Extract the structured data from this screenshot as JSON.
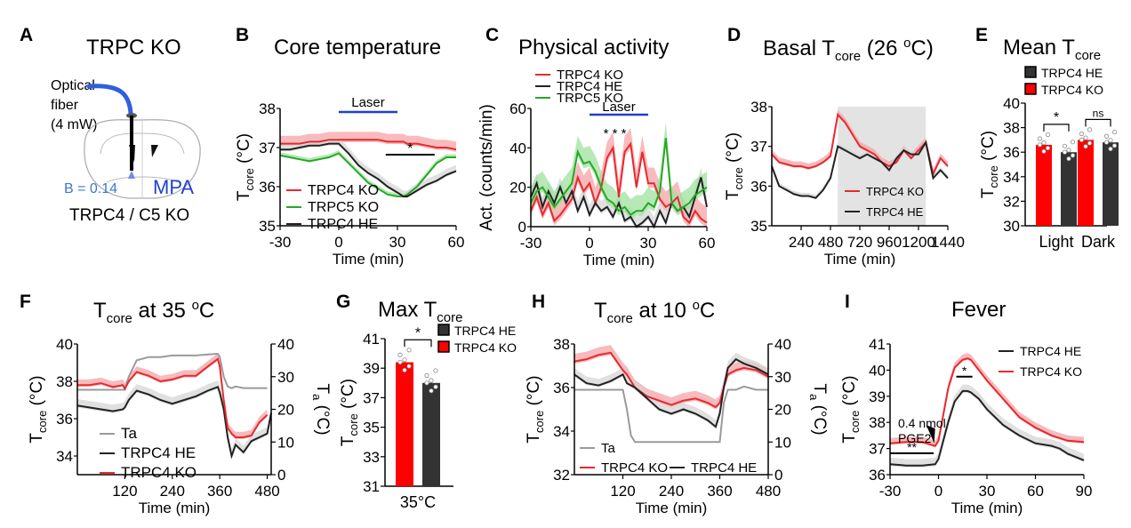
{
  "panels": {
    "A": {
      "letter": "A",
      "title": "TRPC KO",
      "fiber_label_1": "Optical",
      "fiber_label_2": "fiber",
      "fiber_label_3": "(4 mW)",
      "bregma": "B = 0.14",
      "region": "MPA",
      "genotypes": "TRPC4 / C5 KO"
    },
    "B": {
      "letter": "B",
      "title": "Core temperature"
    },
    "C": {
      "letter": "C",
      "title": "Physical activity"
    },
    "D": {
      "letter": "D",
      "title_main": "Basal T",
      "title_sub": "core",
      "title_tail": " (26 ",
      "title_sup": "o",
      "title_end": "C)"
    },
    "E": {
      "letter": "E",
      "title_main": "Mean T",
      "title_sub": "core"
    },
    "F": {
      "letter": "F",
      "title_main": "T",
      "title_sub": "core",
      "title_tail": "  at 35 ",
      "title_sup": "o",
      "title_end": "C"
    },
    "G": {
      "letter": "G",
      "title_main": "Max T",
      "title_sub": "core"
    },
    "H": {
      "letter": "H",
      "title_main": "T",
      "title_sub": "core",
      "title_tail": "  at 10 ",
      "title_sup": "o",
      "title_end": "C"
    },
    "I": {
      "letter": "I",
      "title": "Fever"
    }
  },
  "colors": {
    "ko": "#e8292e",
    "ko_band": "#f5a3a5",
    "he": "#222222",
    "he_band": "#d6d6d6",
    "c5": "#27a827",
    "c5_band": "#9ee29e",
    "ta": "#9a9a9a",
    "laser": "#1f3fcf",
    "shade": "#e3e3e3",
    "bar_ko": "#ff0000",
    "bar_he": "#333333"
  },
  "chart_data": [
    {
      "id": "B",
      "type": "line",
      "title": "Core temperature",
      "xlabel": "Time (min)",
      "ylabel": "T_core (°C)",
      "xlim": [
        -30,
        60
      ],
      "ylim": [
        35,
        38
      ],
      "xticks": [
        "-30",
        "0",
        "30",
        "60"
      ],
      "yticks": [
        "35",
        "36",
        "37",
        "38"
      ],
      "annotations": {
        "laser_label": "Laser",
        "laser_range": [
          0,
          30
        ],
        "sig_label": "*",
        "sig_range": [
          24,
          49
        ]
      },
      "legend": [
        "TRPC4 KO",
        "TRPC5 KO",
        "TRPC4 HE"
      ],
      "legend_position": "bottom-left",
      "x": [
        -30,
        -25,
        -20,
        -15,
        -10,
        -5,
        0,
        5,
        10,
        15,
        20,
        25,
        30,
        33,
        35,
        40,
        45,
        50,
        55,
        60
      ],
      "series": [
        {
          "name": "TRPC4 KO",
          "values": [
            37.1,
            37.1,
            37.1,
            37.15,
            37.15,
            37.2,
            37.2,
            37.2,
            37.2,
            37.2,
            37.2,
            37.15,
            37.15,
            37.15,
            37.1,
            37.1,
            37.05,
            37.0,
            37.0,
            36.95
          ],
          "sem": 0.2
        },
        {
          "name": "TRPC5 KO",
          "values": [
            36.8,
            36.75,
            36.7,
            36.65,
            36.7,
            36.75,
            36.85,
            36.6,
            36.35,
            36.1,
            35.95,
            35.8,
            35.75,
            35.75,
            35.8,
            36.0,
            36.3,
            36.6,
            36.75,
            36.75
          ],
          "sem": 0.08
        },
        {
          "name": "TRPC4 HE",
          "values": [
            36.95,
            36.95,
            37.0,
            37.05,
            37.05,
            37.1,
            37.1,
            36.85,
            36.55,
            36.35,
            36.2,
            36.0,
            35.85,
            35.75,
            35.75,
            35.9,
            36.05,
            36.15,
            36.3,
            36.4
          ],
          "sem": 0.15
        }
      ]
    },
    {
      "id": "C",
      "type": "line",
      "title": "Physical activity",
      "xlabel": "Time (min)",
      "ylabel": "Act. (counts/min)",
      "xlim": [
        -30,
        60
      ],
      "ylim": [
        0,
        60
      ],
      "xticks": [
        "-30",
        "0",
        "30",
        "60"
      ],
      "yticks": [
        "0",
        "20",
        "40",
        "60"
      ],
      "annotations": {
        "laser_label": "Laser",
        "laser_range": [
          0,
          30
        ],
        "sig_label": "* * *"
      },
      "legend": [
        "TRPC4 KO",
        "TRPC4 HE",
        "TRPC5 KO"
      ],
      "legend_position": "top-left",
      "x": [
        -30,
        -27,
        -24,
        -21,
        -18,
        -15,
        -12,
        -9,
        -6,
        -3,
        0,
        3,
        6,
        9,
        12,
        15,
        18,
        21,
        24,
        27,
        30,
        33,
        36,
        39,
        42,
        45,
        48,
        51,
        54,
        57,
        60
      ],
      "series": [
        {
          "name": "TRPC4 KO",
          "values": [
            8,
            15,
            6,
            12,
            3,
            6,
            10,
            14,
            25,
            18,
            22,
            12,
            20,
            35,
            40,
            15,
            38,
            42,
            20,
            38,
            22,
            22,
            14,
            10,
            12,
            15,
            5,
            2,
            8,
            4,
            2
          ],
          "sem": 8
        },
        {
          "name": "TRPC4 HE",
          "values": [
            15,
            22,
            10,
            18,
            12,
            20,
            12,
            18,
            8,
            15,
            6,
            12,
            8,
            10,
            5,
            12,
            3,
            5,
            0,
            2,
            5,
            0,
            8,
            2,
            12,
            8,
            10,
            5,
            15,
            25,
            10
          ],
          "sem": 5
        },
        {
          "name": "TRPC5 KO",
          "values": [
            12,
            18,
            20,
            15,
            10,
            14,
            18,
            22,
            38,
            32,
            33,
            28,
            20,
            14,
            12,
            8,
            10,
            6,
            8,
            8,
            12,
            10,
            18,
            45,
            12,
            8,
            10,
            12,
            16,
            18,
            20
          ],
          "sem": 8
        }
      ]
    },
    {
      "id": "D",
      "type": "line",
      "title": "Basal T_core (26 °C)",
      "xlabel": "Time (min)",
      "ylabel": "T_core (°C)",
      "xlim": [
        0,
        1440
      ],
      "ylim": [
        35,
        38
      ],
      "xticks": [
        "240",
        "480",
        "720",
        "960",
        "1200",
        "1440"
      ],
      "yticks": [
        "35",
        "36",
        "37",
        "38"
      ],
      "annotations": {
        "dark_phase": [
          540,
          1260
        ]
      },
      "legend": [
        "TRPC4 KO",
        "TRPC4 HE"
      ],
      "legend_position": "bottom-center",
      "x": [
        0,
        60,
        120,
        180,
        240,
        300,
        360,
        420,
        480,
        540,
        600,
        660,
        720,
        780,
        840,
        900,
        960,
        1020,
        1080,
        1140,
        1200,
        1260,
        1320,
        1380,
        1440
      ],
      "series": [
        {
          "name": "TRPC4 KO",
          "values": [
            36.8,
            36.6,
            36.55,
            36.5,
            36.5,
            36.45,
            36.5,
            36.6,
            36.75,
            37.8,
            37.6,
            37.3,
            37.0,
            36.9,
            36.8,
            36.6,
            36.5,
            36.6,
            36.9,
            36.7,
            36.9,
            37.1,
            36.3,
            36.7,
            36.5
          ],
          "sem": 0.12
        },
        {
          "name": "TRPC4 HE",
          "values": [
            36.5,
            36.0,
            35.9,
            35.8,
            35.75,
            35.75,
            35.7,
            35.9,
            36.2,
            37.0,
            36.9,
            36.8,
            36.7,
            36.8,
            36.7,
            36.6,
            36.4,
            36.7,
            36.9,
            36.8,
            36.8,
            37.1,
            36.2,
            36.4,
            36.2
          ],
          "sem": 0.08
        }
      ]
    },
    {
      "id": "E",
      "type": "bar",
      "title": "Mean T_core",
      "ylabel": "T_core (°C)",
      "ylim": [
        30,
        40
      ],
      "yticks": [
        "30",
        "32",
        "34",
        "36",
        "38",
        "40"
      ],
      "categories": [
        "Light",
        "Dark"
      ],
      "legend": [
        "TRPC4 HE",
        "TRPC4 KO"
      ],
      "legend_position": "top",
      "series": [
        {
          "name": "TRPC4 KO",
          "values": [
            36.6,
            37.0
          ]
        },
        {
          "name": "TRPC4 HE",
          "values": [
            36.0,
            36.8
          ]
        }
      ],
      "significance": [
        "*",
        "ns"
      ]
    },
    {
      "id": "F",
      "type": "line",
      "title": "T_core at 35 °C",
      "xlabel": "Time (min)",
      "ylabel": "T_core (°C)",
      "y2label": "T_a (°C)",
      "xlim": [
        0,
        490
      ],
      "ylim": [
        33,
        40
      ],
      "y2lim": [
        0,
        40
      ],
      "xticks": [
        "120",
        "240",
        "360",
        "480"
      ],
      "yticks": [
        "34",
        "36",
        "38",
        "40"
      ],
      "y2ticks": [
        "0",
        "10",
        "20",
        "30",
        "40"
      ],
      "legend": [
        "Ta",
        "TRPC4 HE",
        "TRPC4 KO"
      ],
      "legend_position": "bottom-left",
      "x": [
        0,
        30,
        60,
        90,
        115,
        120,
        130,
        150,
        180,
        210,
        240,
        270,
        300,
        330,
        355,
        360,
        370,
        380,
        390,
        400,
        420,
        440,
        460,
        480,
        490
      ],
      "series": [
        {
          "name": "Ta",
          "axis": "y2",
          "values": [
            26,
            26,
            26,
            26,
            26,
            26,
            30,
            35,
            36,
            36,
            36.5,
            36.5,
            36.5,
            36.8,
            37,
            36,
            30,
            27,
            26.5,
            27,
            26.5,
            26.5,
            26.5,
            26.5,
            null
          ]
        },
        {
          "name": "TRPC4 HE",
          "values": [
            36.7,
            36.6,
            36.5,
            36.4,
            36.5,
            36.6,
            37.0,
            37.5,
            37.3,
            37.0,
            36.8,
            37.0,
            37.2,
            37.5,
            37.7,
            37.4,
            36.5,
            35.0,
            34.0,
            34.6,
            34.2,
            34.8,
            35.0,
            35.2,
            36.3
          ],
          "sem": 0.35
        },
        {
          "name": "TRPC4 KO",
          "values": [
            37.8,
            37.8,
            37.9,
            37.7,
            37.8,
            37.6,
            38.0,
            38.5,
            38.3,
            38.0,
            38.1,
            38.3,
            38.3,
            38.8,
            39.2,
            38.8,
            37.0,
            35.5,
            35.2,
            35.0,
            35.0,
            35.1,
            35.8,
            36.2,
            null
          ],
          "sem": 0.3
        }
      ]
    },
    {
      "id": "G",
      "type": "bar",
      "title": "Max T_core",
      "ylabel": "T_core (°C)",
      "ylim": [
        31,
        41
      ],
      "yticks": [
        "31",
        "33",
        "35",
        "37",
        "39",
        "41"
      ],
      "categories": [
        "35°C"
      ],
      "legend": [
        "TRPC4 HE",
        "TRPC4 KO"
      ],
      "legend_position": "top-right",
      "series": [
        {
          "name": "TRPC4 KO",
          "values": [
            39.4
          ]
        },
        {
          "name": "TRPC4 HE",
          "values": [
            38.0
          ]
        }
      ],
      "significance": [
        "*"
      ]
    },
    {
      "id": "H",
      "type": "line",
      "title": "T_core at 10 °C",
      "xlabel": "Time (min)",
      "ylabel": "T_core (°C)",
      "y2label": "T_a (°C)",
      "xlim": [
        0,
        480
      ],
      "ylim": [
        32,
        38
      ],
      "y2lim": [
        0,
        40
      ],
      "xticks": [
        "120",
        "240",
        "360",
        "480"
      ],
      "yticks": [
        "32",
        "34",
        "36",
        "38"
      ],
      "y2ticks": [
        "0",
        "10",
        "20",
        "30",
        "40"
      ],
      "legend": [
        "Ta",
        "TRPC4 KO",
        "TRPC4 HE"
      ],
      "legend_position": "bottom-left",
      "x": [
        0,
        30,
        60,
        90,
        120,
        130,
        140,
        150,
        180,
        210,
        240,
        270,
        300,
        330,
        350,
        360,
        370,
        380,
        400,
        420,
        450,
        480
      ],
      "series": [
        {
          "name": "Ta",
          "axis": "y2",
          "values": [
            26,
            26,
            26,
            26,
            26,
            20,
            12,
            10,
            10,
            10,
            10,
            10,
            10,
            10,
            10,
            10,
            22,
            26,
            26,
            27,
            26,
            26
          ]
        },
        {
          "name": "TRPC4 KO",
          "values": [
            37.2,
            37.3,
            37.5,
            37.6,
            36.8,
            36.6,
            36.3,
            36.0,
            35.6,
            35.4,
            35.2,
            35.4,
            35.5,
            35.3,
            35.1,
            35.3,
            36.0,
            36.6,
            36.8,
            36.9,
            36.8,
            36.5
          ],
          "sem": 0.35
        },
        {
          "name": "TRPC4 HE",
          "values": [
            36.6,
            36.2,
            36.1,
            36.3,
            36.6,
            36.2,
            36.1,
            36.0,
            35.5,
            35.0,
            34.8,
            35.0,
            34.8,
            34.5,
            34.2,
            34.8,
            36.0,
            36.9,
            37.3,
            37.1,
            36.9,
            36.6
          ],
          "sem": 0.3
        }
      ]
    },
    {
      "id": "I",
      "type": "line",
      "title": "Fever",
      "xlabel": "Time (min)",
      "ylabel": "T_core (°C)",
      "xlim": [
        -30,
        90
      ],
      "ylim": [
        36,
        41
      ],
      "xticks": [
        "-30",
        "0",
        "30",
        "60",
        "90"
      ],
      "yticks": [
        "36",
        "37",
        "38",
        "39",
        "40",
        "41"
      ],
      "annotations": {
        "injection_label_1": "0.4 nmol",
        "injection_label_2": "PGE2",
        "injection_time": -1,
        "sig_baseline": "**",
        "sig_baseline_range": [
          -30,
          -3
        ],
        "sig_peak": "*",
        "sig_peak_range": [
          11,
          21
        ]
      },
      "legend": [
        "TRPC4 HE",
        "TRPC4 KO"
      ],
      "legend_position": "top-right",
      "x": [
        -30,
        -20,
        -10,
        -2,
        0,
        3,
        6,
        10,
        15,
        18,
        20,
        25,
        30,
        40,
        50,
        60,
        70,
        75,
        80,
        90
      ],
      "series": [
        {
          "name": "TRPC4 HE",
          "values": [
            36.4,
            36.35,
            36.35,
            36.4,
            36.6,
            37.3,
            38.0,
            38.8,
            39.2,
            39.2,
            39.15,
            38.9,
            38.5,
            37.9,
            37.5,
            37.2,
            37.1,
            37.0,
            36.8,
            36.55
          ],
          "sem": 0.25
        },
        {
          "name": "TRPC4 KO",
          "values": [
            37.2,
            37.25,
            37.25,
            37.1,
            37.3,
            38.3,
            39.3,
            40.1,
            40.4,
            40.45,
            40.4,
            40.0,
            39.6,
            38.9,
            38.2,
            37.8,
            37.5,
            37.4,
            37.3,
            37.25
          ],
          "sem": 0.2
        }
      ]
    }
  ]
}
